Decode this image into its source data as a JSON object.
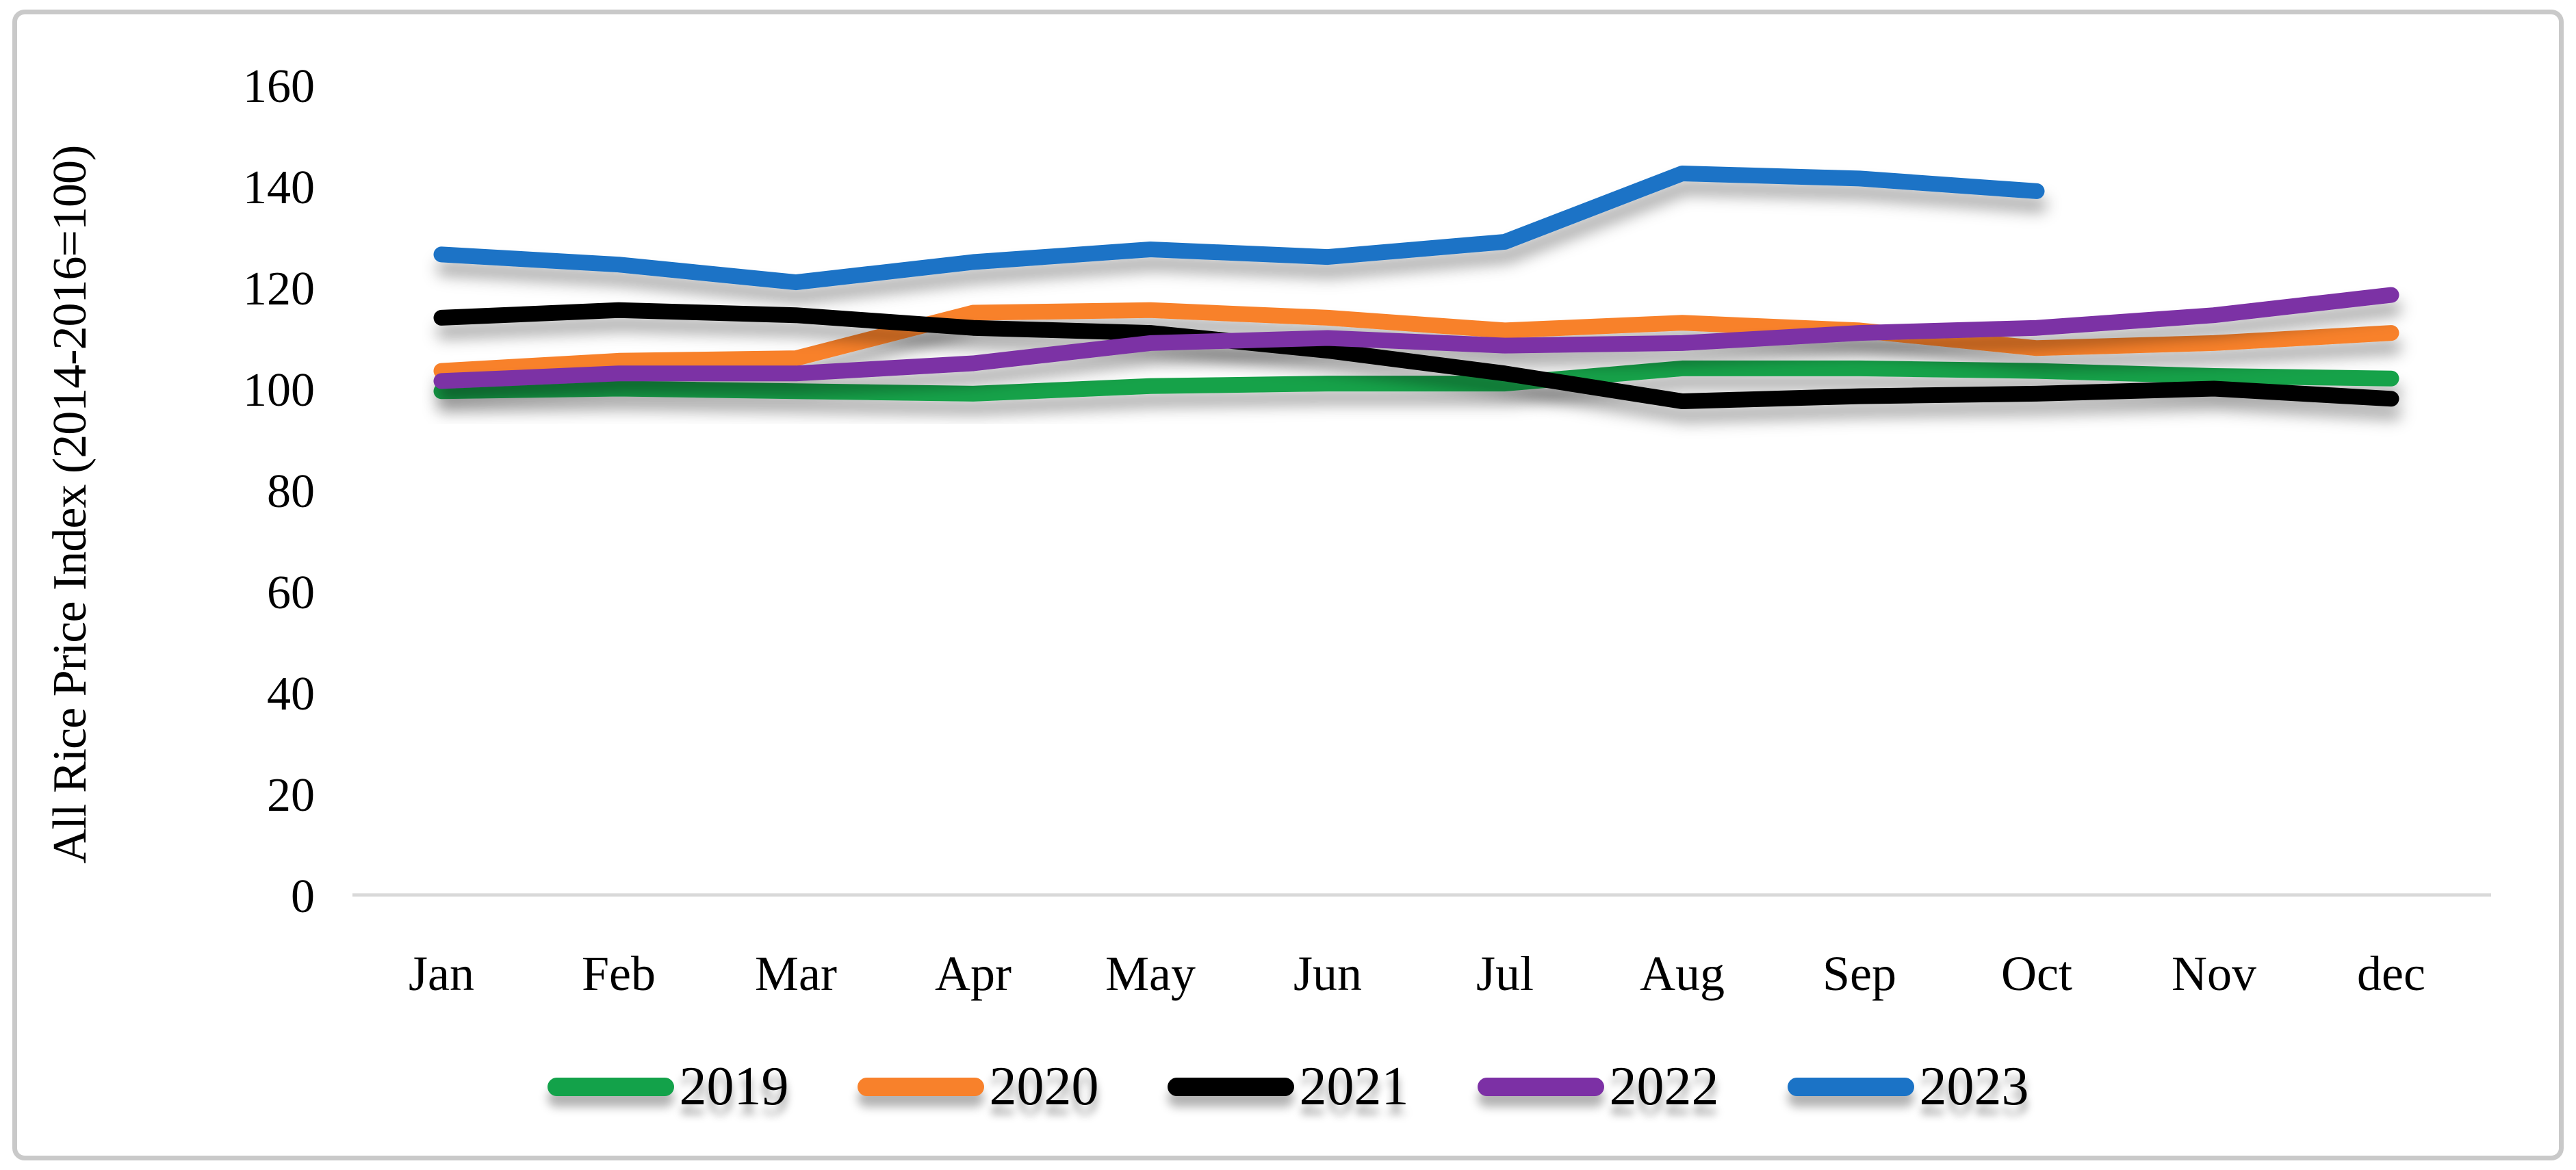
{
  "figure": {
    "border_color": "#c9c9c9",
    "background_color": "#ffffff"
  },
  "chart_data": {
    "type": "line",
    "title": "",
    "ylabel": "All Rice Price Index (2014-2016=100)",
    "xlabel": "",
    "ylim": [
      0,
      160
    ],
    "yticks": [
      0,
      20,
      40,
      60,
      80,
      100,
      120,
      140,
      160
    ],
    "grid": false,
    "legend_position": "bottom",
    "axis_color": "#d9d9d9",
    "categories": [
      "Jan",
      "Feb",
      "Mar",
      "Apr",
      "May",
      "Jun",
      "Jul",
      "Aug",
      "Sep",
      "Oct",
      "Nov",
      "dec"
    ],
    "series": [
      {
        "name": "2019",
        "color": "#13A24A",
        "values": [
          99.5,
          100,
          99.5,
          99,
          100.5,
          101,
          101,
          104,
          104,
          103.5,
          102.5,
          102
        ]
      },
      {
        "name": "2020",
        "color": "#F8812B",
        "values": [
          103.5,
          105.5,
          106,
          115,
          115.5,
          114,
          111.5,
          113,
          111.5,
          108,
          109,
          111
        ]
      },
      {
        "name": "2021",
        "color": "#000000",
        "values": [
          114,
          115.5,
          114.5,
          112,
          111,
          107.5,
          103,
          97.5,
          98.5,
          99,
          100,
          98
        ]
      },
      {
        "name": "2022",
        "color": "#7C30A5",
        "values": [
          101.5,
          103,
          103,
          105,
          109,
          110,
          108.5,
          109,
          111,
          112,
          114.5,
          118.5
        ]
      },
      {
        "name": "2023",
        "color": "#1B73C6",
        "values": [
          126.5,
          124.5,
          121,
          125,
          127.5,
          126,
          129,
          142.5,
          141.5,
          139,
          null,
          null
        ]
      }
    ]
  }
}
